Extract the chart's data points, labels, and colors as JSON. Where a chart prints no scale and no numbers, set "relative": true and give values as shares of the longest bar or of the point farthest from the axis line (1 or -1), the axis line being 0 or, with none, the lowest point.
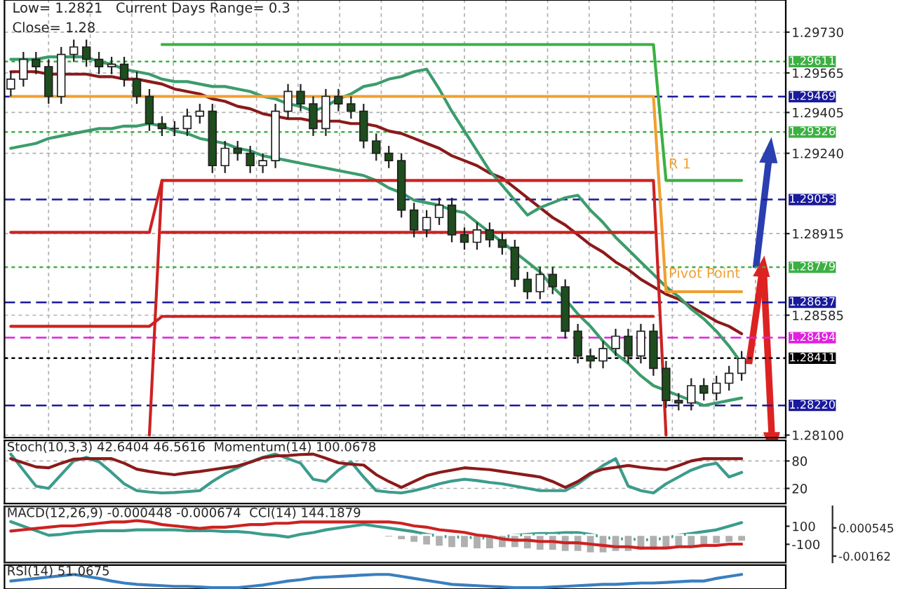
{
  "chart_data": [
    {
      "type": "candlestick",
      "categories": [
        null,
        null,
        null,
        null,
        null,
        null,
        null,
        null,
        null,
        null,
        null,
        null,
        null,
        null,
        null,
        null,
        null,
        null,
        null,
        null,
        null,
        null,
        null,
        null,
        null,
        null,
        null,
        null,
        null,
        null,
        null,
        null,
        null,
        null,
        null,
        null,
        null,
        null,
        null,
        null,
        null,
        null,
        null,
        null,
        null,
        null,
        null,
        null,
        null,
        null,
        null,
        null,
        null,
        null,
        null,
        null,
        null,
        null,
        null
      ],
      "ohlc": [
        [
          1.295,
          1.2957,
          1.2947,
          1.2954
        ],
        [
          1.2954,
          1.2965,
          1.2951,
          1.2962
        ],
        [
          1.2962,
          1.2965,
          1.2956,
          1.2959
        ],
        [
          1.2959,
          1.2962,
          1.2944,
          1.2947
        ],
        [
          1.2947,
          1.2967,
          1.2944,
          1.2964
        ],
        [
          1.2964,
          1.297,
          1.2961,
          1.2967
        ],
        [
          1.2967,
          1.297,
          1.2959,
          1.2962
        ],
        [
          1.2962,
          1.2965,
          1.2956,
          1.2959
        ],
        [
          1.2959,
          1.2963,
          1.2956,
          1.296
        ],
        [
          1.296,
          1.2963,
          1.2951,
          1.2954
        ],
        [
          1.2954,
          1.2957,
          1.2944,
          1.2947
        ],
        [
          1.2947,
          1.295,
          1.2933,
          1.2936
        ],
        [
          1.2936,
          1.2939,
          1.2931,
          1.2934
        ],
        [
          1.2934,
          1.2937,
          1.2931,
          1.2934
        ],
        [
          1.2934,
          1.2942,
          1.2931,
          1.2939
        ],
        [
          1.2939,
          1.2944,
          1.2936,
          1.2941
        ],
        [
          1.2941,
          1.2944,
          1.2916,
          1.2919
        ],
        [
          1.2919,
          1.2929,
          1.2916,
          1.2926
        ],
        [
          1.2926,
          1.2929,
          1.2921,
          1.2924
        ],
        [
          1.2924,
          1.2927,
          1.2916,
          1.2919
        ],
        [
          1.2919,
          1.2924,
          1.2916,
          1.2921
        ],
        [
          1.2921,
          1.2944,
          1.2918,
          1.2941
        ],
        [
          1.2941,
          1.2952,
          1.2938,
          1.2949
        ],
        [
          1.2949,
          1.2952,
          1.2941,
          1.2944
        ],
        [
          1.2944,
          1.2947,
          1.2931,
          1.2934
        ],
        [
          1.2934,
          1.295,
          1.2931,
          1.2947
        ],
        [
          1.2947,
          1.295,
          1.2941,
          1.2944
        ],
        [
          1.2944,
          1.2947,
          1.2938,
          1.2941
        ],
        [
          1.2941,
          1.2944,
          1.2926,
          1.2929
        ],
        [
          1.2929,
          1.2932,
          1.2921,
          1.2924
        ],
        [
          1.2924,
          1.2927,
          1.2918,
          1.2921
        ],
        [
          1.2921,
          1.2924,
          1.2898,
          1.2901
        ],
        [
          1.2901,
          1.2904,
          1.289,
          1.2893
        ],
        [
          1.2893,
          1.2901,
          1.289,
          1.2898
        ],
        [
          1.2898,
          1.2906,
          1.2895,
          1.2903
        ],
        [
          1.2903,
          1.2906,
          1.2888,
          1.2891
        ],
        [
          1.2891,
          1.2894,
          1.2885,
          1.2888
        ],
        [
          1.2888,
          1.2896,
          1.2885,
          1.2893
        ],
        [
          1.2893,
          1.2896,
          1.2886,
          1.2889
        ],
        [
          1.2889,
          1.2892,
          1.2883,
          1.2886
        ],
        [
          1.2886,
          1.2889,
          1.287,
          1.2873
        ],
        [
          1.2873,
          1.2876,
          1.2865,
          1.2868
        ],
        [
          1.2868,
          1.2878,
          1.2865,
          1.2875
        ],
        [
          1.2875,
          1.2878,
          1.2867,
          1.287
        ],
        [
          1.287,
          1.2873,
          1.2849,
          1.2852
        ],
        [
          1.2852,
          1.2855,
          1.2839,
          1.2842
        ],
        [
          1.2842,
          1.2845,
          1.2837,
          1.284
        ],
        [
          1.284,
          1.2848,
          1.2837,
          1.2845
        ],
        [
          1.2845,
          1.2853,
          1.2842,
          1.285
        ],
        [
          1.285,
          1.2853,
          1.2839,
          1.2842
        ],
        [
          1.2842,
          1.2855,
          1.2839,
          1.2852
        ],
        [
          1.2852,
          1.2855,
          1.2834,
          1.2837
        ],
        [
          1.2837,
          1.284,
          1.2821,
          1.2824
        ],
        [
          1.2824,
          1.2827,
          1.282,
          1.2823
        ],
        [
          1.2823,
          1.2833,
          1.282,
          1.283
        ],
        [
          1.283,
          1.2833,
          1.2824,
          1.2827
        ],
        [
          1.2827,
          1.2834,
          1.2824,
          1.2831
        ],
        [
          1.2831,
          1.2838,
          1.2828,
          1.2835
        ],
        [
          1.2835,
          1.2844,
          1.2832,
          1.2841
        ]
      ],
      "series": [
        {
          "type": "line",
          "color": "#8b1a1a",
          "values": [
            1.2957,
            1.2957,
            1.2957,
            1.2956,
            1.2956,
            1.2956,
            1.2956,
            1.2955,
            1.2955,
            1.2954,
            1.2954,
            1.2953,
            1.2952,
            1.295,
            1.2949,
            1.2948,
            1.2946,
            1.2945,
            1.2943,
            1.2942,
            1.294,
            1.2939,
            1.2938,
            1.2938,
            1.2937,
            1.2937,
            1.2937,
            1.2936,
            1.2936,
            1.2935,
            1.2933,
            1.2932,
            1.293,
            1.2928,
            1.2926,
            1.2923,
            1.2921,
            1.2919,
            1.2916,
            1.2914,
            1.291,
            1.2906,
            1.2902,
            1.2898,
            1.2895,
            1.2891,
            1.2887,
            1.2884,
            1.288,
            1.2877,
            1.2873,
            1.287,
            1.2867,
            1.2865,
            1.2862,
            1.2859,
            1.2856,
            1.2854,
            1.2851
          ]
        },
        {
          "type": "line",
          "color": "#3c9c6c",
          "values": [
            1.2962,
            1.2962,
            1.2962,
            1.2963,
            1.2963,
            1.2963,
            1.2963,
            1.2961,
            1.296,
            1.2958,
            1.2957,
            1.2956,
            1.2954,
            1.2953,
            1.2953,
            1.2952,
            1.2951,
            1.2951,
            1.295,
            1.2949,
            1.2947,
            1.2946,
            1.2944,
            1.2943,
            1.2941,
            1.2943,
            1.2946,
            1.2948,
            1.2951,
            1.2952,
            1.2954,
            1.2955,
            1.2957,
            1.2958,
            1.295,
            1.2941,
            1.2933,
            1.2925,
            1.2917,
            1.2911,
            1.2905,
            1.2899,
            1.2902,
            1.2904,
            1.2906,
            1.2907,
            1.2901,
            1.2896,
            1.289,
            1.2885,
            1.288,
            1.2875,
            1.287,
            1.2866,
            1.2861,
            1.2857,
            1.2852,
            1.2846,
            1.2839
          ]
        },
        {
          "type": "line",
          "color": "#3c9c6c",
          "values": [
            1.2926,
            1.2927,
            1.2928,
            1.293,
            1.2931,
            1.2932,
            1.2933,
            1.2934,
            1.2934,
            1.2935,
            1.2935,
            1.2936,
            1.2935,
            1.2933,
            1.2932,
            1.293,
            1.2929,
            1.2928,
            1.2926,
            1.2925,
            1.2923,
            1.2922,
            1.2921,
            1.292,
            1.2919,
            1.2918,
            1.2917,
            1.2916,
            1.2915,
            1.2913,
            1.291,
            1.2908,
            1.2905,
            1.2904,
            1.2903,
            1.2901,
            1.29,
            1.2896,
            1.2892,
            1.2888,
            1.2884,
            1.288,
            1.2876,
            1.287,
            1.2865,
            1.2859,
            1.2854,
            1.2848,
            1.2843,
            1.2839,
            1.2834,
            1.283,
            1.2828,
            1.2826,
            1.2824,
            1.2822,
            1.2823,
            1.2824,
            1.2825
          ]
        },
        {
          "type": "line",
          "color": "#3cb043",
          "values": [
            null,
            null,
            null,
            null,
            null,
            null,
            null,
            null,
            null,
            null,
            null,
            null,
            1.2968,
            1.2968,
            1.2968,
            1.2968,
            1.2968,
            1.2968,
            1.2968,
            1.2968,
            1.2968,
            1.2968,
            1.2968,
            1.2968,
            1.2968,
            1.2968,
            1.2968,
            1.2968,
            1.2968,
            1.2968,
            1.2968,
            1.2968,
            1.2968,
            1.2968,
            1.2968,
            1.2968,
            1.2968,
            1.2968,
            1.2968,
            1.2968,
            1.2968,
            1.2968,
            1.2968,
            1.2968,
            1.2968,
            1.2968,
            1.2968,
            1.2968,
            1.2968,
            1.2968,
            1.2968,
            1.2968,
            1.2913,
            1.2913,
            1.2913,
            1.2913,
            1.2913,
            1.2913,
            1.2913
          ]
        },
        {
          "type": "line",
          "color": "#f0a030",
          "values": [
            1.2947,
            1.2947,
            1.2947,
            1.2947,
            1.2947,
            1.2947,
            1.2947,
            1.2947,
            1.2947,
            1.2947,
            1.2947,
            1.2947,
            1.2947,
            1.2947,
            1.2947,
            1.2947,
            1.2947,
            1.2947,
            1.2947,
            1.2947,
            1.2947,
            1.2947,
            1.2947,
            1.2947,
            1.2947,
            1.2947,
            1.2947,
            1.2947,
            1.2947,
            1.2947,
            1.2947,
            1.2947,
            1.2947,
            1.2947,
            1.2947,
            1.2947,
            1.2947,
            1.2947,
            1.2947,
            1.2947,
            1.2947,
            1.2947,
            1.2947,
            1.2947,
            1.2947,
            1.2947,
            1.2947,
            1.2947,
            1.2947,
            1.2947,
            1.2947,
            1.2947,
            1.2868,
            1.2868,
            1.2868,
            1.2868,
            1.2868,
            1.2868,
            1.2868
          ]
        },
        {
          "type": "line",
          "color": "#cc2222",
          "values": [
            1.2892,
            1.2892,
            1.2892,
            1.2892,
            1.2892,
            1.2892,
            1.2892,
            1.2892,
            1.2892,
            1.2892,
            1.2892,
            1.2892,
            1.2913,
            1.2913,
            1.2913,
            1.2913,
            1.2913,
            1.2913,
            1.2913,
            1.2913,
            1.2913,
            1.2913,
            1.2913,
            1.2913,
            1.2913,
            1.2913,
            1.2913,
            1.2913,
            1.2913,
            1.2913,
            1.2913,
            1.2913,
            1.2913,
            1.2913,
            1.2913,
            1.2913,
            1.2913,
            1.2913,
            1.2913,
            1.2913,
            1.2913,
            1.2913,
            1.2913,
            1.2913,
            1.2913,
            1.2913,
            1.2913,
            1.2913,
            1.2913,
            1.2913,
            1.2913,
            1.2913,
            1.281,
            null,
            null,
            null,
            null,
            null,
            null
          ]
        },
        {
          "type": "line",
          "color": "#cc2222",
          "values": [
            null,
            null,
            null,
            null,
            null,
            null,
            null,
            null,
            null,
            null,
            null,
            null,
            1.2892,
            1.2892,
            1.2892,
            1.2892,
            1.2892,
            1.2892,
            1.2892,
            1.2892,
            1.2892,
            1.2892,
            1.2892,
            1.2892,
            1.2892,
            1.2892,
            1.2892,
            1.2892,
            1.2892,
            1.2892,
            1.2892,
            1.2892,
            1.2892,
            1.2892,
            1.2892,
            1.2892,
            1.2892,
            1.2892,
            1.2892,
            1.2892,
            1.2892,
            1.2892,
            1.2892,
            1.2892,
            1.2892,
            1.2892,
            1.2892,
            1.2892,
            1.2892,
            1.2892,
            1.2892,
            1.2892,
            null,
            null,
            null,
            null,
            null,
            null,
            null
          ]
        },
        {
          "type": "line",
          "color": "#cc2222",
          "values": [
            1.2854,
            1.2854,
            1.2854,
            1.2854,
            1.2854,
            1.2854,
            1.2854,
            1.2854,
            1.2854,
            1.2854,
            1.2854,
            1.2854,
            1.2858,
            1.2858,
            1.2858,
            1.2858,
            1.2858,
            1.2858,
            1.2858,
            1.2858,
            1.2858,
            1.2858,
            1.2858,
            1.2858,
            1.2858,
            1.2858,
            1.2858,
            1.2858,
            1.2858,
            1.2858,
            1.2858,
            1.2858,
            1.2858,
            1.2858,
            1.2858,
            1.2858,
            1.2858,
            1.2858,
            1.2858,
            1.2858,
            1.2858,
            1.2858,
            1.2858,
            1.2858,
            1.2858,
            1.2858,
            1.2858,
            1.2858,
            1.2858,
            1.2858,
            1.2858,
            1.2858,
            null,
            null,
            null,
            null,
            null,
            null,
            null
          ]
        },
        {
          "type": "line",
          "color": "#cc2222",
          "values": [
            null,
            null,
            null,
            null,
            null,
            null,
            null,
            null,
            null,
            null,
            null,
            1.281,
            1.2913,
            null,
            null,
            null,
            null,
            null,
            null,
            null,
            null,
            null,
            null,
            null,
            null,
            null,
            null,
            null,
            null,
            null,
            null,
            null,
            null,
            null,
            null,
            null,
            null,
            null,
            null,
            null,
            null,
            null,
            null,
            null,
            null,
            null,
            null,
            null,
            null,
            null,
            null,
            null,
            null,
            null,
            null,
            null,
            null,
            null,
            null
          ]
        }
      ],
      "ylim": [
        1.2809,
        1.2986
      ],
      "yticks": [
        {
          "value": 1.2973,
          "label": "1.29730"
        },
        {
          "value": 1.29565,
          "label": "1.29565"
        },
        {
          "value": 1.29405,
          "label": "1.29405"
        },
        {
          "value": 1.2924,
          "label": "1.29240"
        },
        {
          "value": 1.28915,
          "label": "1.28915"
        },
        {
          "value": 1.28585,
          "label": "1.28585"
        },
        {
          "value": 1.281,
          "label": "1.28100"
        }
      ],
      "grid": true,
      "ref_lines": [
        {
          "axis": "y",
          "value": 1.29611,
          "label": "1.29611",
          "color": "#3cb043",
          "line_style": "dotted"
        },
        {
          "axis": "y",
          "value": 1.29469,
          "label": "1.29469",
          "color": "#1a1a9c",
          "line_style": "dashed"
        },
        {
          "axis": "y",
          "value": 1.29326,
          "label": "1.29326",
          "color": "#3cb043",
          "line_style": "dotted"
        },
        {
          "axis": "y",
          "value": 1.29053,
          "label": "1.29053",
          "color": "#1a1a9c",
          "line_style": "dashed"
        },
        {
          "axis": "y",
          "value": 1.28779,
          "label": "1.28779",
          "color": "#3cb043",
          "line_style": "dotted"
        },
        {
          "axis": "y",
          "value": 1.28637,
          "label": "1.28637",
          "color": "#1a1a9c",
          "line_style": "dashed"
        },
        {
          "axis": "y",
          "value": 1.28494,
          "label": "1.28494",
          "color": "#e020e0",
          "line_style": "dashed"
        },
        {
          "axis": "y",
          "value": 1.28411,
          "label": "1.28411",
          "color": "#000000",
          "line_style": "dotted"
        },
        {
          "axis": "y",
          "value": 1.2822,
          "label": "1.28220",
          "color": "#1a1a9c",
          "line_style": "dashed"
        }
      ],
      "annotations": [
        "Low= 1.2821   Current Days Range= 0.3",
        "Close= 1.28",
        "R 1",
        "Pivot Point"
      ]
    },
    {
      "type": "line",
      "title": "Stoch(10,3,3) 42.6404 46.5616  Momentum(14) 100.0678",
      "categories": [
        null,
        null,
        null,
        null,
        null,
        null,
        null,
        null,
        null,
        null,
        null,
        null,
        null,
        null,
        null,
        null,
        null,
        null,
        null,
        null,
        null,
        null,
        null,
        null,
        null,
        null,
        null,
        null,
        null,
        null,
        null,
        null,
        null,
        null,
        null,
        null,
        null,
        null,
        null,
        null,
        null,
        null,
        null,
        null,
        null,
        null,
        null,
        null,
        null,
        null,
        null,
        null,
        null,
        null,
        null,
        null,
        null,
        null,
        null
      ],
      "series": [
        {
          "color": "#3c9c8c",
          "values": [
            95,
            60,
            25,
            20,
            50,
            80,
            88,
            78,
            55,
            30,
            15,
            12,
            10,
            11,
            13,
            15,
            35,
            52,
            65,
            78,
            88,
            95,
            85,
            75,
            40,
            35,
            60,
            78,
            45,
            15,
            12,
            10,
            15,
            22,
            30,
            36,
            40,
            37,
            33,
            30,
            25,
            20,
            15,
            15,
            15,
            30,
            50,
            70,
            85,
            25,
            15,
            10,
            30,
            45,
            60,
            70,
            75,
            45,
            55
          ]
        },
        {
          "color": "#8b1a1a",
          "values": [
            85,
            76,
            67,
            65,
            75,
            84,
            85,
            85,
            85,
            75,
            62,
            57,
            53,
            50,
            54,
            57,
            61,
            65,
            69,
            77,
            87,
            91,
            92,
            94,
            95,
            86,
            76,
            73,
            71,
            50,
            35,
            22,
            35,
            48,
            55,
            60,
            65,
            63,
            61,
            57,
            53,
            49,
            45,
            35,
            22,
            35,
            53,
            62,
            66,
            70,
            66,
            63,
            61,
            70,
            80,
            85,
            85,
            85,
            85
          ]
        }
      ],
      "ylim": [
        -13,
        125
      ],
      "yticks": [
        80,
        20
      ],
      "grid": "y"
    },
    {
      "type": "line",
      "title": "MACD(12,26,9) -0.000448 -0.000674  CCI(14) 144.1879",
      "categories": [
        null,
        null,
        null,
        null,
        null,
        null,
        null,
        null,
        null,
        null,
        null,
        null,
        null,
        null,
        null,
        null,
        null,
        null,
        null,
        null,
        null,
        null,
        null,
        null,
        null,
        null,
        null,
        null,
        null,
        null,
        null,
        null,
        null,
        null,
        null,
        null,
        null,
        null,
        null,
        null,
        null,
        null,
        null,
        null,
        null,
        null,
        null,
        null,
        null,
        null,
        null,
        null,
        null,
        null,
        null,
        null,
        null,
        null,
        null
      ],
      "series": [
        {
          "type": "bar",
          "color": "#b0b0b0",
          "axis": "y2",
          "values": [
            null,
            null,
            null,
            null,
            null,
            null,
            null,
            null,
            null,
            null,
            null,
            null,
            null,
            null,
            null,
            null,
            null,
            null,
            null,
            null,
            null,
            null,
            null,
            null,
            null,
            null,
            null,
            null,
            null,
            null,
            -0.0002,
            -0.0004,
            -0.0006,
            -0.0008,
            -0.0009,
            -0.001,
            -0.001,
            -0.0011,
            -0.0011,
            -0.001,
            -0.001,
            -0.0011,
            -0.0012,
            -0.0012,
            -0.0013,
            -0.0013,
            -0.0014,
            -0.0014,
            -0.0013,
            -0.0013,
            -0.0012,
            -0.0012,
            -0.0011,
            -0.001,
            -0.0009,
            -0.0008,
            -0.0007,
            -0.0006,
            -0.0005
          ]
        },
        {
          "type": "line",
          "color": "#cc2222",
          "axis": "y2",
          "values": [
            0.0003,
            0.0004,
            0.0005,
            0.0006,
            0.0007,
            0.0007,
            0.0008,
            0.0009,
            0.001,
            0.001,
            0.0011,
            0.001,
            0.0008,
            0.0007,
            0.0006,
            0.0005,
            0.0006,
            0.0006,
            0.0007,
            0.0008,
            0.0008,
            0.0009,
            0.0009,
            0.001,
            0.001,
            0.001,
            0.001,
            0.001,
            0.001,
            0.001,
            0.001,
            0.0009,
            0.0007,
            0.0006,
            0.0004,
            0.0003,
            0.0002,
            0,
            -0.0001,
            -0.0003,
            -0.0004,
            -0.0004,
            -0.0005,
            -0.0005,
            -0.0006,
            -0.0006,
            -0.0007,
            -0.0008,
            -0.0009,
            -0.0009,
            -0.001,
            -0.001,
            -0.001,
            -0.0009,
            -0.0009,
            -0.0008,
            -0.0008,
            -0.0007,
            -0.0007
          ]
        },
        {
          "type": "line",
          "color": "#3c9c8c",
          "values": [
            150,
            100,
            50,
            0,
            10,
            30,
            40,
            50,
            50,
            50,
            60,
            60,
            60,
            60,
            50,
            50,
            50,
            40,
            40,
            30,
            10,
            0,
            -20,
            10,
            30,
            60,
            80,
            100,
            120,
            100,
            80,
            60,
            40,
            10,
            -10,
            -20,
            -20,
            -30,
            -30,
            -20,
            0,
            10,
            20,
            20,
            30,
            30,
            10,
            -20,
            -40,
            -40,
            -50,
            -50,
            -30,
            0,
            20,
            40,
            60,
            100,
            140
          ]
        }
      ],
      "ylim": [
        -300,
        320
      ],
      "yticks": [
        100,
        -100
      ],
      "y2lim": [
        -0.0021,
        0.0022
      ],
      "y2ticks": [
        0.000545,
        -0.00162
      ],
      "grid": false
    },
    {
      "type": "line",
      "title": "RSI(14) 51.0675",
      "relative": true,
      "categories": [
        null,
        null,
        null,
        null,
        null,
        null,
        null,
        null,
        null,
        null,
        null,
        null,
        null,
        null,
        null,
        null,
        null,
        null,
        null,
        null,
        null,
        null,
        null,
        null,
        null,
        null,
        null,
        null,
        null,
        null,
        null,
        null,
        null,
        null,
        null,
        null,
        null,
        null,
        null,
        null,
        null,
        null,
        null,
        null,
        null,
        null,
        null,
        null,
        null,
        null,
        null,
        null,
        null,
        null,
        null,
        null,
        null,
        null,
        null
      ],
      "series": [
        {
          "color": "#3a7fc0",
          "values": [
            0.5,
            0.6,
            0.7,
            0.8,
            0.9,
            1,
            0.85,
            0.7,
            0.5,
            0.35,
            0.25,
            0.2,
            0.15,
            0.1,
            0.1,
            0.05,
            0,
            0,
            0,
            0.1,
            0.2,
            0.35,
            0.5,
            0.6,
            0.75,
            0.8,
            0.85,
            0.9,
            0.95,
            1,
            1,
            0.85,
            0.7,
            0.55,
            0.4,
            0.25,
            0.2,
            0.15,
            0.1,
            0.05,
            0,
            0,
            0,
            0.05,
            0.1,
            0.15,
            0.2,
            0.25,
            0.25,
            0.3,
            0.35,
            0.35,
            0.4,
            0.45,
            0.5,
            0.5,
            0.7,
            0.85,
            1
          ]
        }
      ]
    }
  ]
}
